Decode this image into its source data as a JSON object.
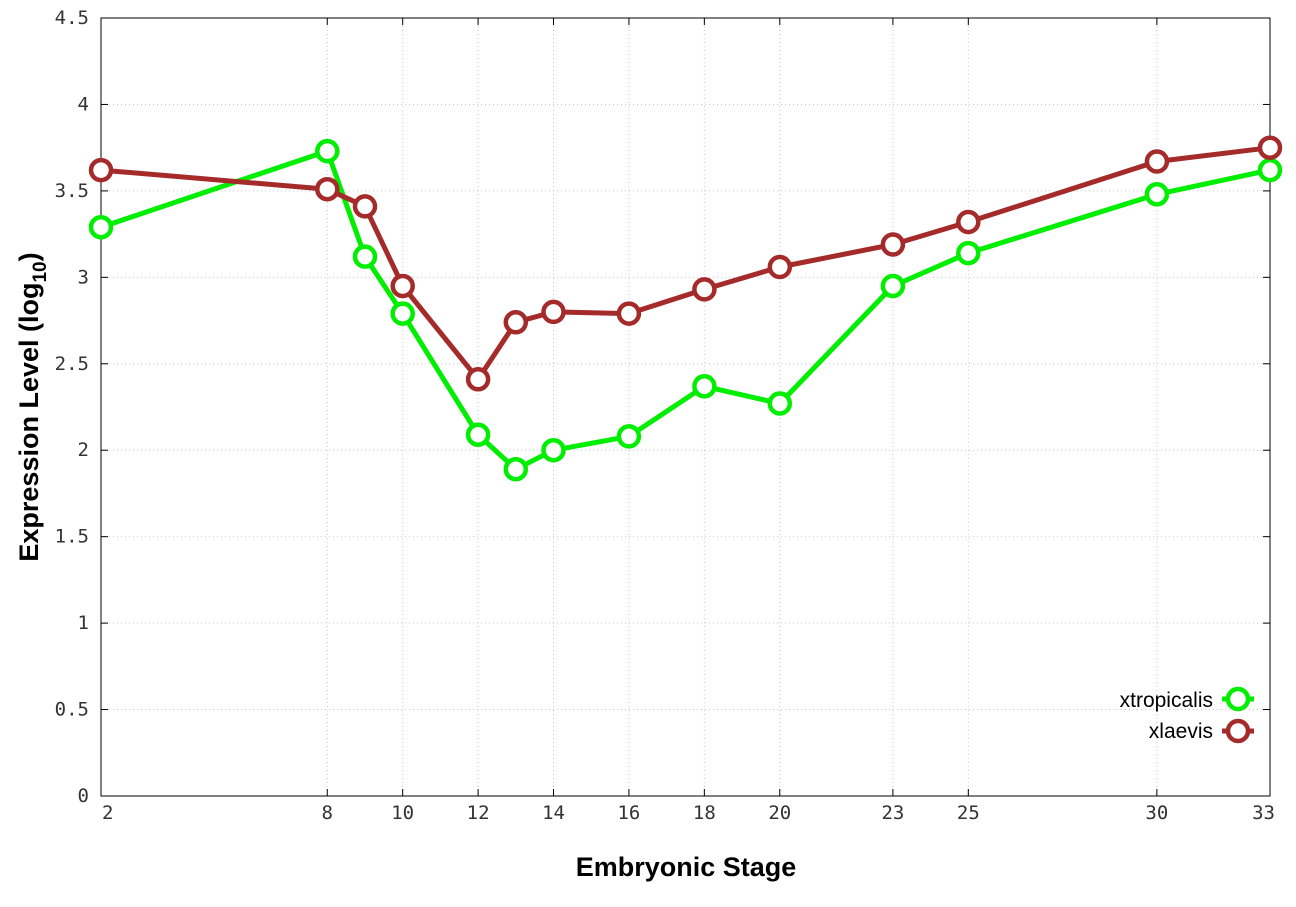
{
  "chart_data": {
    "type": "line",
    "xlabel": "Embryonic Stage",
    "ylabel_main": "Expression Level (log",
    "ylabel_sub": "10",
    "ylabel_close": ")",
    "xlim": [
      2,
      33
    ],
    "ylim": [
      0,
      4.5
    ],
    "x_ticks": [
      2,
      8,
      10,
      12,
      14,
      16,
      18,
      20,
      23,
      25,
      30,
      33
    ],
    "y_ticks": [
      0,
      0.5,
      1,
      1.5,
      2,
      2.5,
      3,
      3.5,
      4,
      4.5
    ],
    "y_tick_labels": [
      "0",
      "0.5",
      "1",
      "1.5",
      "2",
      "2.5",
      "3",
      "3.5",
      "4",
      "4.5"
    ],
    "grid": true,
    "legend_position": "bottom-right",
    "series": [
      {
        "name": "xtropicalis",
        "color": "#00ee00",
        "x": [
          2,
          8,
          9,
          10,
          12,
          13,
          14,
          16,
          18,
          20,
          23,
          25,
          30,
          33
        ],
        "values": [
          3.29,
          3.73,
          3.12,
          2.79,
          2.09,
          1.89,
          2.0,
          2.08,
          2.37,
          2.27,
          2.95,
          3.14,
          3.48,
          3.62
        ]
      },
      {
        "name": "xlaevis",
        "color": "#a52a2a",
        "x": [
          2,
          8,
          9,
          10,
          12,
          13,
          14,
          16,
          18,
          20,
          23,
          25,
          30,
          33
        ],
        "values": [
          3.62,
          3.51,
          3.41,
          2.95,
          2.41,
          2.74,
          2.8,
          2.79,
          2.93,
          3.06,
          3.19,
          3.32,
          3.67,
          3.75
        ]
      }
    ]
  }
}
